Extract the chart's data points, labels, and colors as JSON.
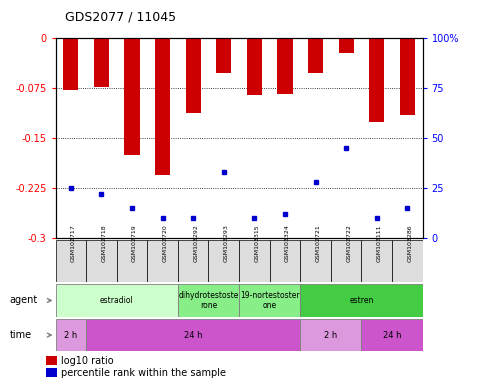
{
  "title": "GDS2077 / 11045",
  "samples": [
    "GSM102717",
    "GSM102718",
    "GSM102719",
    "GSM102720",
    "GSM103292",
    "GSM103293",
    "GSM103315",
    "GSM103324",
    "GSM102721",
    "GSM102722",
    "GSM103111",
    "GSM103286"
  ],
  "log10_ratio": [
    -0.078,
    -0.073,
    -0.175,
    -0.205,
    -0.112,
    -0.052,
    -0.085,
    -0.083,
    -0.052,
    -0.022,
    -0.125,
    -0.115
  ],
  "percentile_rank": [
    25,
    22,
    15,
    10,
    10,
    33,
    10,
    12,
    28,
    45,
    10,
    15
  ],
  "ylim_left": [
    -0.3,
    0
  ],
  "ylim_right": [
    0,
    100
  ],
  "yticks_left": [
    0,
    -0.075,
    -0.15,
    -0.225,
    -0.3
  ],
  "yticks_right": [
    0,
    25,
    50,
    75,
    100
  ],
  "bar_color": "#cc0000",
  "dot_color": "#0000cc",
  "bg_color": "#ffffff",
  "agent_groups": [
    {
      "label": "estradiol",
      "start": 0,
      "end": 4,
      "color": "#ccffcc"
    },
    {
      "label": "dihydrotestoste\nrone",
      "start": 4,
      "end": 6,
      "color": "#88ee88"
    },
    {
      "label": "19-nortestoster\none",
      "start": 6,
      "end": 8,
      "color": "#88ee88"
    },
    {
      "label": "estren",
      "start": 8,
      "end": 12,
      "color": "#44cc44"
    }
  ],
  "time_groups": [
    {
      "label": "2 h",
      "start": 0,
      "end": 1,
      "color": "#dd99dd"
    },
    {
      "label": "24 h",
      "start": 1,
      "end": 8,
      "color": "#cc55cc"
    },
    {
      "label": "2 h",
      "start": 8,
      "end": 10,
      "color": "#dd99dd"
    },
    {
      "label": "24 h",
      "start": 10,
      "end": 12,
      "color": "#cc55cc"
    }
  ],
  "legend_items": [
    {
      "label": "log10 ratio",
      "color": "#cc0000"
    },
    {
      "label": "percentile rank within the sample",
      "color": "#0000cc"
    }
  ],
  "grid_lines": [
    -0.075,
    -0.15,
    -0.225
  ]
}
